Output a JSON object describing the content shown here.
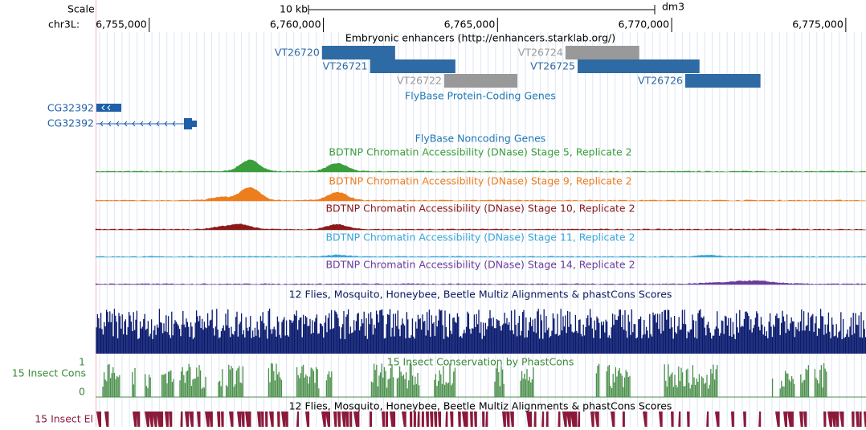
{
  "ruler": {
    "scale_label": "Scale",
    "scale_size": "10 kb",
    "assembly": "dm3",
    "chrom": "chr3L:",
    "xlim": [
      6753460,
      6775580
    ],
    "ticks": [
      {
        "value": 6755000,
        "label": "6,755,000"
      },
      {
        "value": 6760000,
        "label": "6,760,000"
      },
      {
        "value": 6765000,
        "label": "6,765,000"
      },
      {
        "value": 6770000,
        "label": "6,770,000"
      },
      {
        "value": 6775000,
        "label": "6,775,000"
      }
    ]
  },
  "enhancers": {
    "title": "Embryonic enhancers (http://enhancers.starklab.org/)",
    "features": [
      {
        "name": "VT26720",
        "start": 6759960,
        "end": 6762060,
        "color": "#2e6aa3"
      },
      {
        "name": "VT26721",
        "start": 6761340,
        "end": 6763790,
        "color": "#2e6aa3"
      },
      {
        "name": "VT26722",
        "start": 6763470,
        "end": 6765570,
        "color": "#999999"
      },
      {
        "name": "VT26724",
        "start": 6766950,
        "end": 6769070,
        "color": "#999999"
      },
      {
        "name": "VT26725",
        "start": 6767300,
        "end": 6770800,
        "color": "#2e6aa3"
      },
      {
        "name": "VT26726",
        "start": 6770390,
        "end": 6772550,
        "color": "#2e6aa3"
      }
    ]
  },
  "genes": {
    "title": "FlyBase Protein-Coding Genes",
    "items": [
      "CG32392",
      "CG32392"
    ]
  },
  "noncoding": {
    "title": "FlyBase Noncoding Genes"
  },
  "dnase": [
    {
      "title": "BDTNP Chromatin Accessibility (DNase) Stage 5, Replicate 2",
      "color": "#3a9e3a"
    },
    {
      "title": "BDTNP Chromatin Accessibility (DNase) Stage 9, Replicate 2",
      "color": "#ee7d1e"
    },
    {
      "title": "BDTNP Chromatin Accessibility (DNase) Stage 10, Replicate 2",
      "color": "#8b1a1a"
    },
    {
      "title": "BDTNP Chromatin Accessibility (DNase) Stage 11, Replicate 2",
      "color": "#3aa6d8"
    },
    {
      "title": "BDTNP Chromatin Accessibility (DNase) Stage 14, Replicate 2",
      "color": "#6a3d9a"
    }
  ],
  "multiz": {
    "title": "12 Flies, Mosquito, Honeybee, Beetle Multiz Alignments & phastCons Scores"
  },
  "phastcons": {
    "title": "15 Insect Conservation by PhastCons",
    "side_label": "15 Insect Cons",
    "ymax": "1",
    "ymin": "0"
  },
  "elements": {
    "title": "12 Flies, Mosquito, Honeybee, Beetle Multiz Alignments & phastCons Scores",
    "side_label": "15 Insect El"
  }
}
